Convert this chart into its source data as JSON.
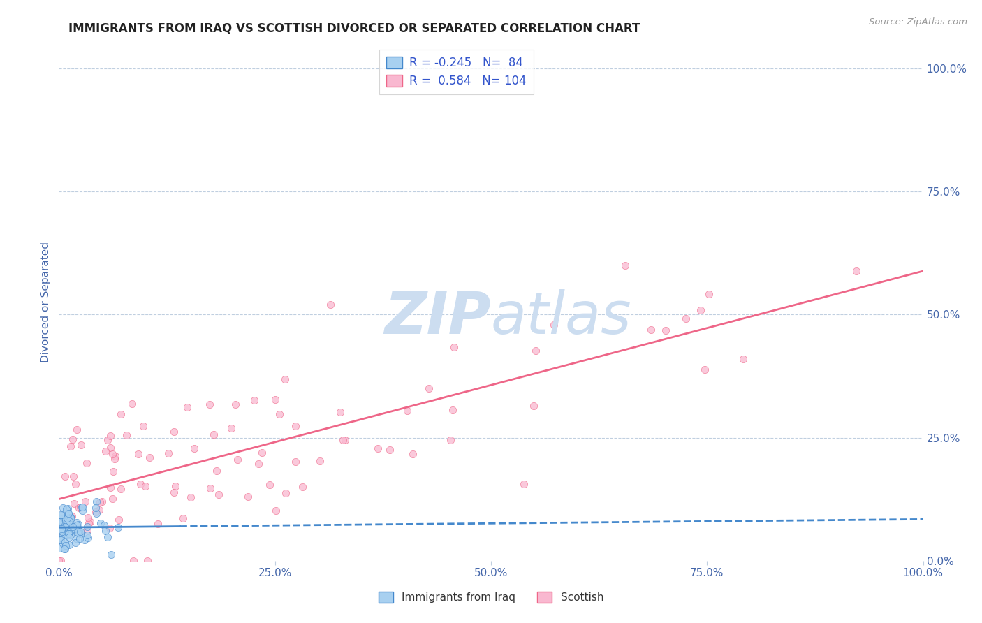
{
  "title": "IMMIGRANTS FROM IRAQ VS SCOTTISH DIVORCED OR SEPARATED CORRELATION CHART",
  "source_text": "Source: ZipAtlas.com",
  "ylabel": "Divorced or Separated",
  "legend_label_1": "Immigrants from Iraq",
  "legend_label_2": "Scottish",
  "r1": -0.245,
  "n1": 84,
  "r2": 0.584,
  "n2": 104,
  "color_blue": "#a8d0f0",
  "color_pink": "#f9b8d0",
  "color_blue_line": "#4488cc",
  "color_pink_line": "#ee6688",
  "watermark_color": "#ccddf0",
  "background_color": "#ffffff",
  "grid_color": "#c0cfe0",
  "title_color": "#222222",
  "axis_label_color": "#4466aa",
  "legend_text_color": "#3355cc",
  "bottom_legend_color": "#333333",
  "seed_blue": 7,
  "seed_pink": 13
}
